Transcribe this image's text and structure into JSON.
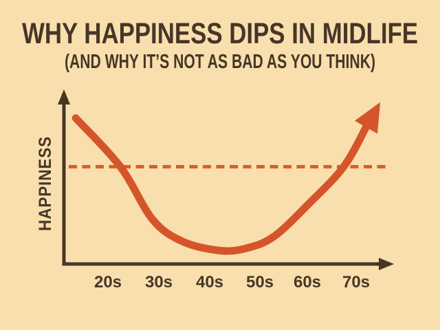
{
  "header": {
    "title": "WHY HAPPINESS DIPS IN MIDLIFE",
    "subtitle": "(AND WHY IT’S NOT AS BAD AS YOU THINK)"
  },
  "colors": {
    "background": "#f8dfad",
    "ink": "#473627",
    "accent": "#d5552b",
    "dashed_line": "#d95e2d"
  },
  "chart_data": {
    "type": "line",
    "title": "WHY HAPPINESS DIPS IN MIDLIFE",
    "subtitle": "(AND WHY IT’S NOT AS BAD AS YOU THINK)",
    "xlabel": "",
    "ylabel": "HAPPINESS",
    "categories": [
      "20s",
      "30s",
      "40s",
      "50s",
      "60s",
      "70s"
    ],
    "x_axis_unit": "age_decade",
    "ylim": [
      0,
      100
    ],
    "x_age_range": [
      15,
      80
    ],
    "grid": false,
    "legend": false,
    "series": [
      {
        "name": "happiness-over-life",
        "style": "solid-arrow",
        "x_age": [
          18.5,
          27.5,
          34,
          40,
          47.5,
          53,
          58.5,
          65.5,
          72.5,
          77
        ],
        "y_happiness": [
          87,
          58,
          26.5,
          13.5,
          8,
          9.5,
          16.5,
          36,
          58,
          81.5
        ]
      }
    ],
    "baseline": {
      "name": "average-happiness-reference",
      "style": "dashed",
      "y_happiness": 58
    }
  }
}
